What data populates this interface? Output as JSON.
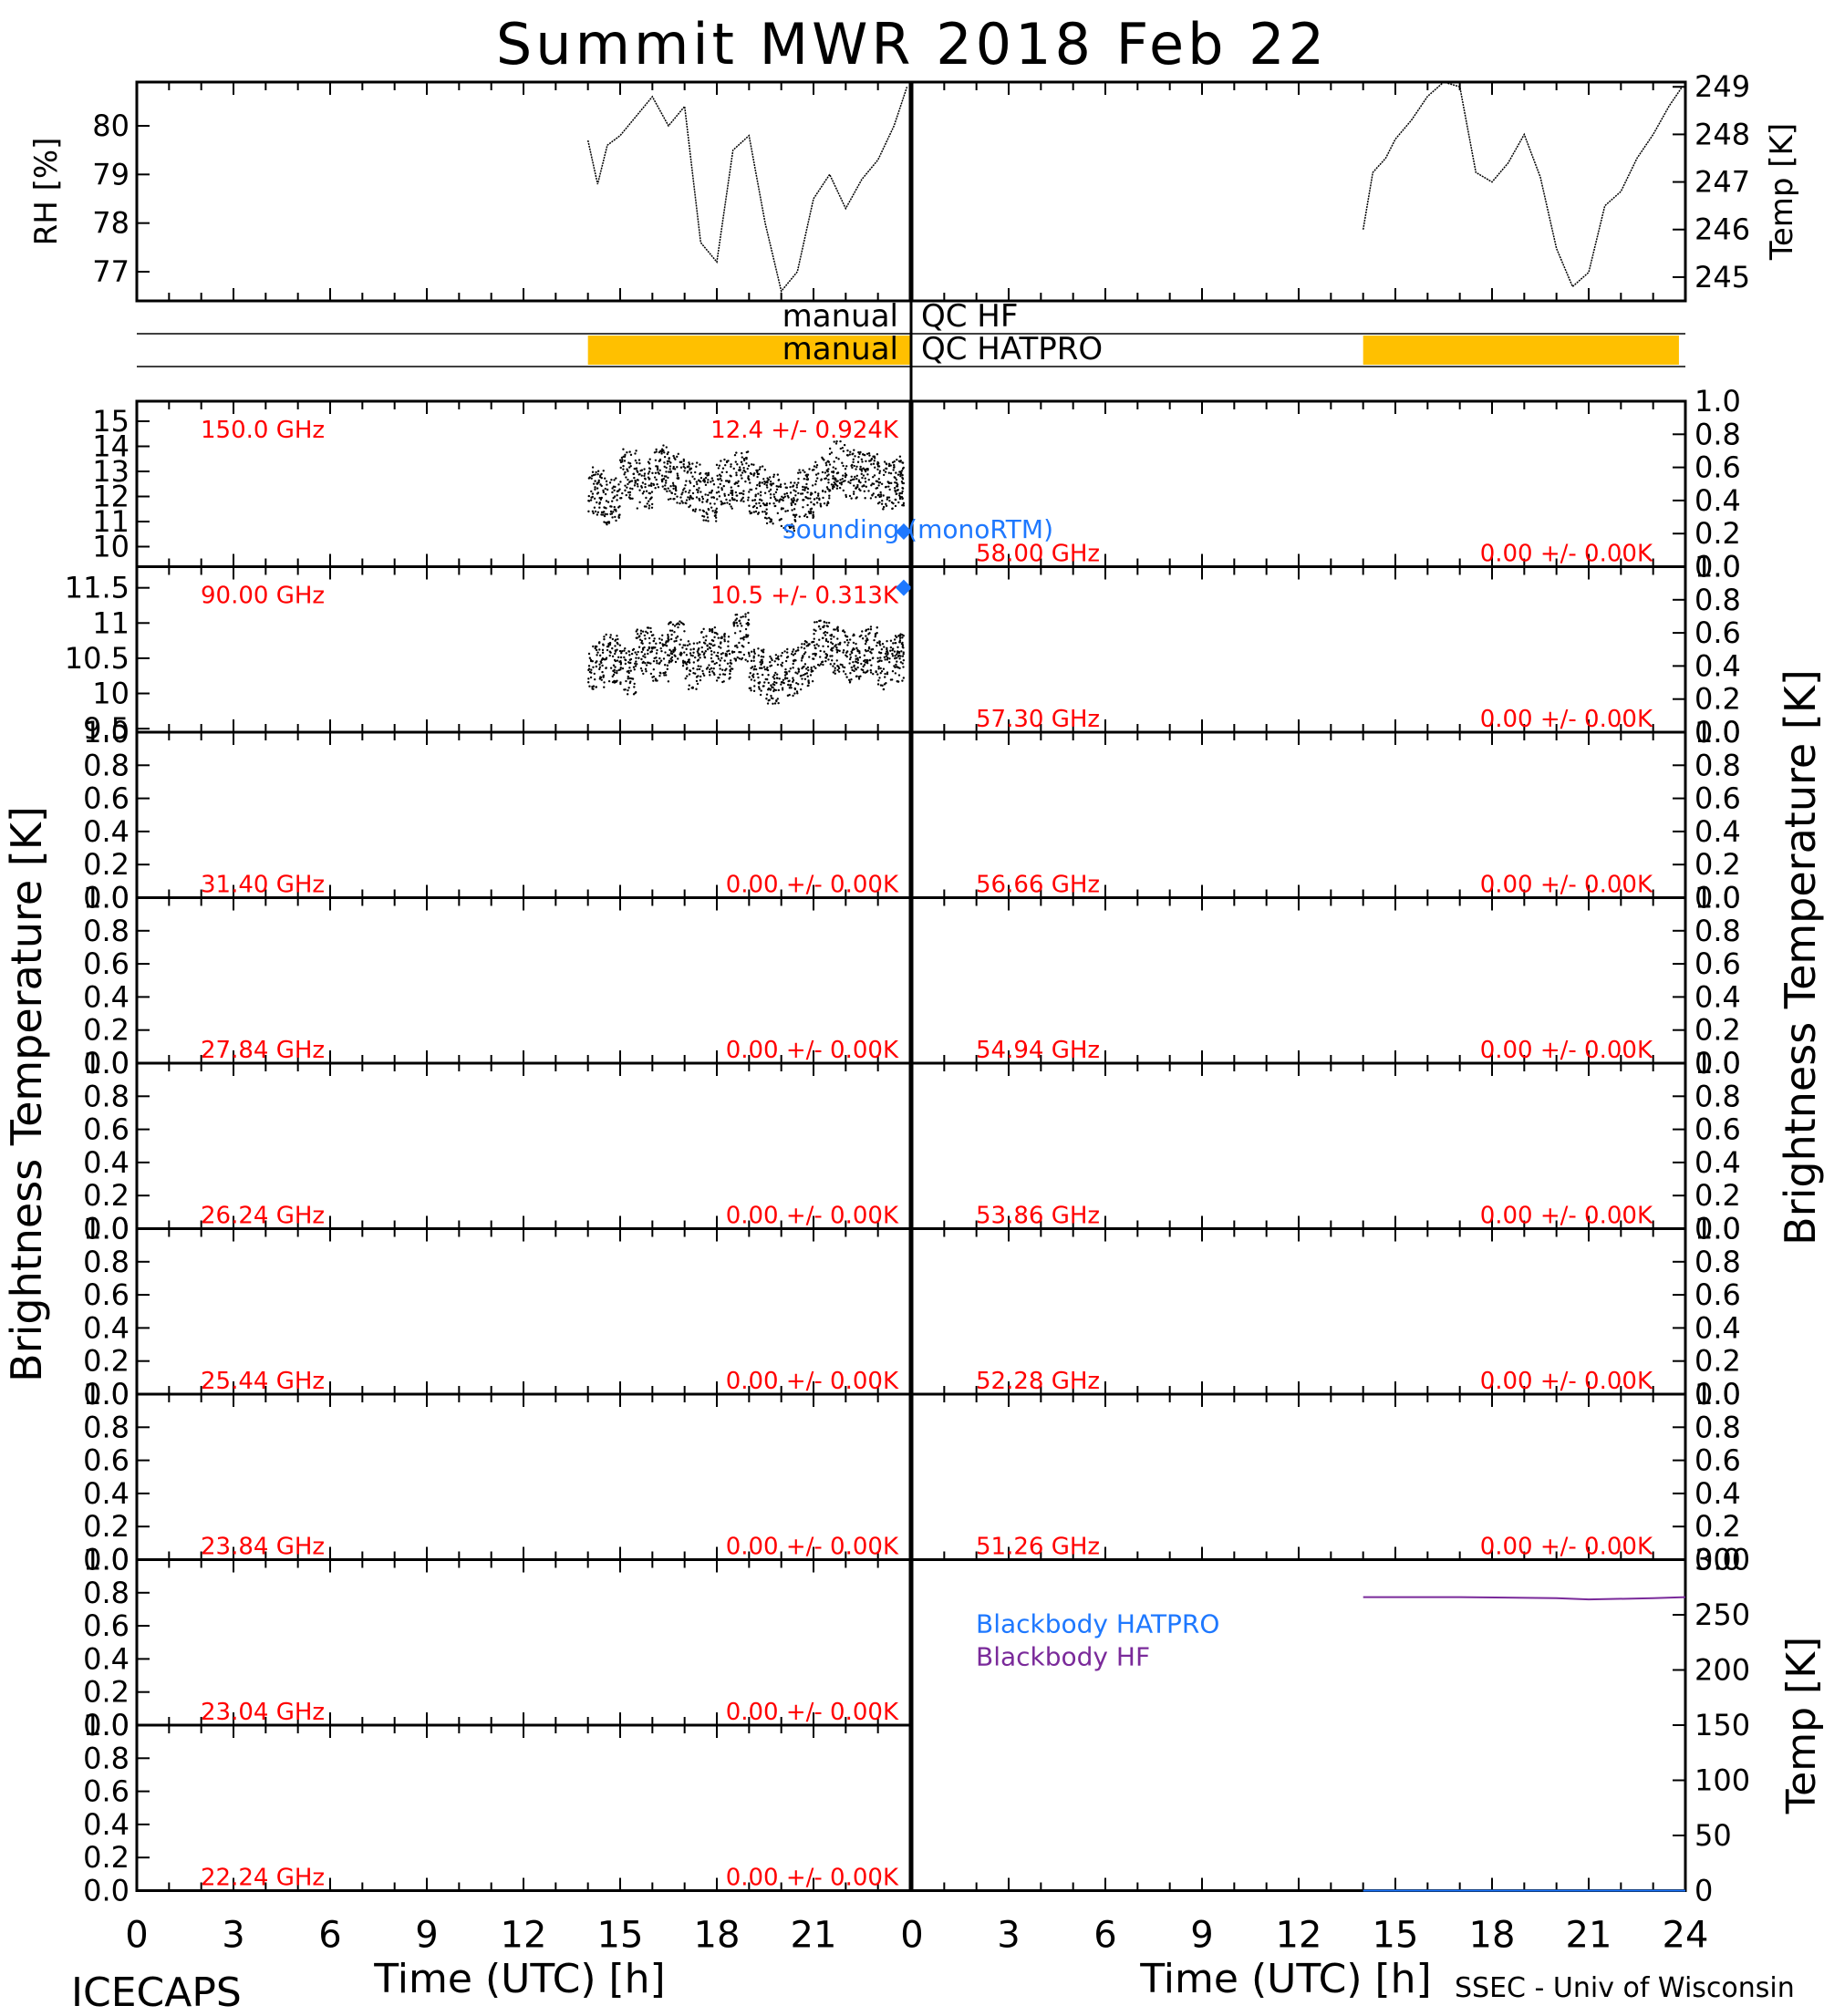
{
  "header": {
    "title": "Summit MWR 2018 Feb 22",
    "site": "ICECAPS",
    "credit": "SSEC - Univ of Wisconsin"
  },
  "labels": {
    "rh_axis": "RH [%]",
    "temp_axis": "Temp [K]",
    "tb_axis": "Brightness Temperature [K]",
    "bb_axis": "Temp [K]",
    "time_axis": "Time (UTC) [h]",
    "qc_hf": "QC HF",
    "qc_hatpro": "QC HATPRO",
    "qc_hf_mode": "manual",
    "qc_hatpro_mode": "manual",
    "sounding": "sounding (monoRTM)",
    "bb_hatpro": "Blackbody HATPRO",
    "bb_hf": "Blackbody HF"
  },
  "colors": {
    "channel_label": "#ff0000",
    "sounding": "#1e78ff",
    "qc_fill": "#ffc000",
    "bb_hatpro": "#1e78ff",
    "bb_hf": "#7a2a9a",
    "data": "#000000"
  },
  "chart_data": [
    {
      "type": "line",
      "name": "met_rh",
      "ylabel": "RH [%]",
      "xlim": [
        0,
        24
      ],
      "ylim": [
        76.4,
        80.9
      ],
      "yticks": [
        77,
        78,
        79,
        80
      ],
      "x": [
        14.0,
        14.3,
        14.6,
        15.0,
        15.5,
        16.0,
        16.5,
        17.0,
        17.5,
        18.0,
        18.5,
        19.0,
        19.5,
        20.0,
        20.5,
        21.0,
        21.5,
        22.0,
        22.5,
        23.0,
        23.5,
        23.9
      ],
      "y": [
        79.7,
        78.8,
        79.6,
        79.8,
        80.2,
        80.6,
        80.0,
        80.4,
        77.6,
        77.2,
        79.5,
        79.8,
        78.0,
        76.6,
        77.0,
        78.5,
        79.0,
        78.3,
        78.9,
        79.3,
        80.0,
        80.8
      ]
    },
    {
      "type": "line",
      "name": "met_temp",
      "ylabel": "Temp [K]",
      "xlim": [
        0,
        24
      ],
      "ylim": [
        244.5,
        249.1
      ],
      "yticks": [
        245,
        246,
        247,
        248,
        249
      ],
      "x": [
        14.0,
        14.3,
        14.7,
        15.0,
        15.5,
        16.0,
        16.5,
        17.0,
        17.5,
        18.0,
        18.5,
        19.0,
        19.5,
        20.0,
        20.5,
        21.0,
        21.5,
        22.0,
        22.5,
        23.0,
        23.5,
        23.9
      ],
      "y": [
        246.0,
        247.2,
        247.5,
        247.9,
        248.3,
        248.8,
        249.1,
        249.0,
        247.2,
        247.0,
        247.4,
        248.0,
        247.1,
        245.6,
        244.8,
        245.1,
        246.5,
        246.8,
        247.5,
        248.0,
        248.6,
        249.0
      ]
    },
    {
      "type": "bar",
      "name": "qc_flags",
      "categories": [
        "QC HF",
        "QC HATPRO"
      ],
      "flagged_intervals": {
        "QC HF": [],
        "QC HATPRO": [
          [
            14.0,
            24.0
          ],
          [
            14.0,
            23.8
          ]
        ]
      }
    },
    {
      "type": "scatter",
      "channel": "150.0 GHz",
      "stats": "12.4 +/- 0.924K",
      "column": "left",
      "xlim": [
        0,
        24
      ],
      "ylim": [
        9.2,
        15.8
      ],
      "yticks": [
        10,
        11,
        12,
        13,
        14,
        15
      ],
      "x": [
        14,
        14.5,
        15,
        15.5,
        16,
        16.5,
        17,
        17.5,
        18,
        18.5,
        19,
        19.5,
        20,
        20.5,
        21,
        21.5,
        22,
        22.5,
        23,
        23.5,
        23.8
      ],
      "y": [
        12.2,
        11.8,
        12.9,
        12.5,
        13.1,
        12.7,
        12.4,
        12.0,
        12.5,
        12.8,
        12.3,
        11.9,
        11.6,
        12.1,
        12.6,
        13.2,
        12.9,
        12.8,
        12.4,
        12.6,
        12.3
      ],
      "spread": 1.0,
      "sounding": {
        "x": 23.8,
        "y": 10.6
      }
    },
    {
      "type": "scatter",
      "channel": "90.00 GHz",
      "stats": "10.5 +/- 0.313K",
      "column": "left",
      "xlim": [
        0,
        24
      ],
      "ylim": [
        9.45,
        11.8
      ],
      "yticks": [
        9.5,
        10.0,
        10.5,
        11.0,
        11.5
      ],
      "x": [
        14,
        14.5,
        15,
        15.5,
        16,
        16.5,
        17,
        17.5,
        18,
        18.5,
        19,
        19.5,
        20,
        20.5,
        21,
        21.5,
        22,
        22.5,
        23,
        23.5,
        23.8
      ],
      "y": [
        10.4,
        10.5,
        10.3,
        10.6,
        10.5,
        10.7,
        10.4,
        10.6,
        10.5,
        10.8,
        10.3,
        10.2,
        10.3,
        10.4,
        10.7,
        10.6,
        10.5,
        10.6,
        10.4,
        10.5,
        10.4
      ],
      "spread": 0.35,
      "sounding": {
        "x": 23.8,
        "y": 11.5
      }
    },
    {
      "type": "scatter",
      "channel": "31.40 GHz",
      "stats": "0.00 +/- 0.00K",
      "column": "left",
      "x": [],
      "y": []
    },
    {
      "type": "scatter",
      "channel": "27.84 GHz",
      "stats": "0.00 +/- 0.00K",
      "column": "left",
      "x": [],
      "y": []
    },
    {
      "type": "scatter",
      "channel": "26.24 GHz",
      "stats": "0.00 +/- 0.00K",
      "column": "left",
      "x": [],
      "y": []
    },
    {
      "type": "scatter",
      "channel": "25.44 GHz",
      "stats": "0.00 +/- 0.00K",
      "column": "left",
      "x": [],
      "y": []
    },
    {
      "type": "scatter",
      "channel": "23.84 GHz",
      "stats": "0.00 +/- 0.00K",
      "column": "left",
      "x": [],
      "y": []
    },
    {
      "type": "scatter",
      "channel": "23.04 GHz",
      "stats": "0.00 +/- 0.00K",
      "column": "left",
      "x": [],
      "y": []
    },
    {
      "type": "scatter",
      "channel": "22.24 GHz",
      "stats": "0.00 +/- 0.00K",
      "column": "left",
      "x": [],
      "y": []
    },
    {
      "type": "scatter",
      "channel": "58.00 GHz",
      "stats": "0.00 +/- 0.00K",
      "column": "right",
      "x": [],
      "y": []
    },
    {
      "type": "scatter",
      "channel": "57.30 GHz",
      "stats": "0.00 +/- 0.00K",
      "column": "right",
      "x": [],
      "y": []
    },
    {
      "type": "scatter",
      "channel": "56.66 GHz",
      "stats": "0.00 +/- 0.00K",
      "column": "right",
      "x": [],
      "y": []
    },
    {
      "type": "scatter",
      "channel": "54.94 GHz",
      "stats": "0.00 +/- 0.00K",
      "column": "right",
      "x": [],
      "y": []
    },
    {
      "type": "scatter",
      "channel": "53.86 GHz",
      "stats": "0.00 +/- 0.00K",
      "column": "right",
      "x": [],
      "y": []
    },
    {
      "type": "scatter",
      "channel": "52.28 GHz",
      "stats": "0.00 +/- 0.00K",
      "column": "right",
      "x": [],
      "y": []
    },
    {
      "type": "scatter",
      "channel": "51.26 GHz",
      "stats": "0.00 +/- 0.00K",
      "column": "right",
      "x": [],
      "y": []
    },
    {
      "type": "line",
      "name": "blackbody",
      "ylabel": "Temp [K]",
      "xlim": [
        0,
        24
      ],
      "ylim": [
        0,
        300
      ],
      "yticks": [
        0,
        50,
        100,
        150,
        200,
        250,
        300
      ],
      "series": [
        {
          "name": "Blackbody HATPRO",
          "x": [
            14,
            24
          ],
          "y": [
            0,
            0
          ]
        },
        {
          "name": "Blackbody HF",
          "x": [
            14,
            17,
            20,
            21,
            23,
            24
          ],
          "y": [
            266,
            266,
            265,
            264,
            265,
            266
          ]
        }
      ]
    }
  ],
  "xticks": [
    "0",
    "3",
    "6",
    "9",
    "12",
    "15",
    "18",
    "21",
    "24"
  ],
  "xticks_left": [
    "0",
    "3",
    "6",
    "9",
    "12",
    "15",
    "18",
    "21"
  ],
  "empty_yticks": [
    "0.0",
    "0.2",
    "0.4",
    "0.6",
    "0.8",
    "1.0"
  ]
}
